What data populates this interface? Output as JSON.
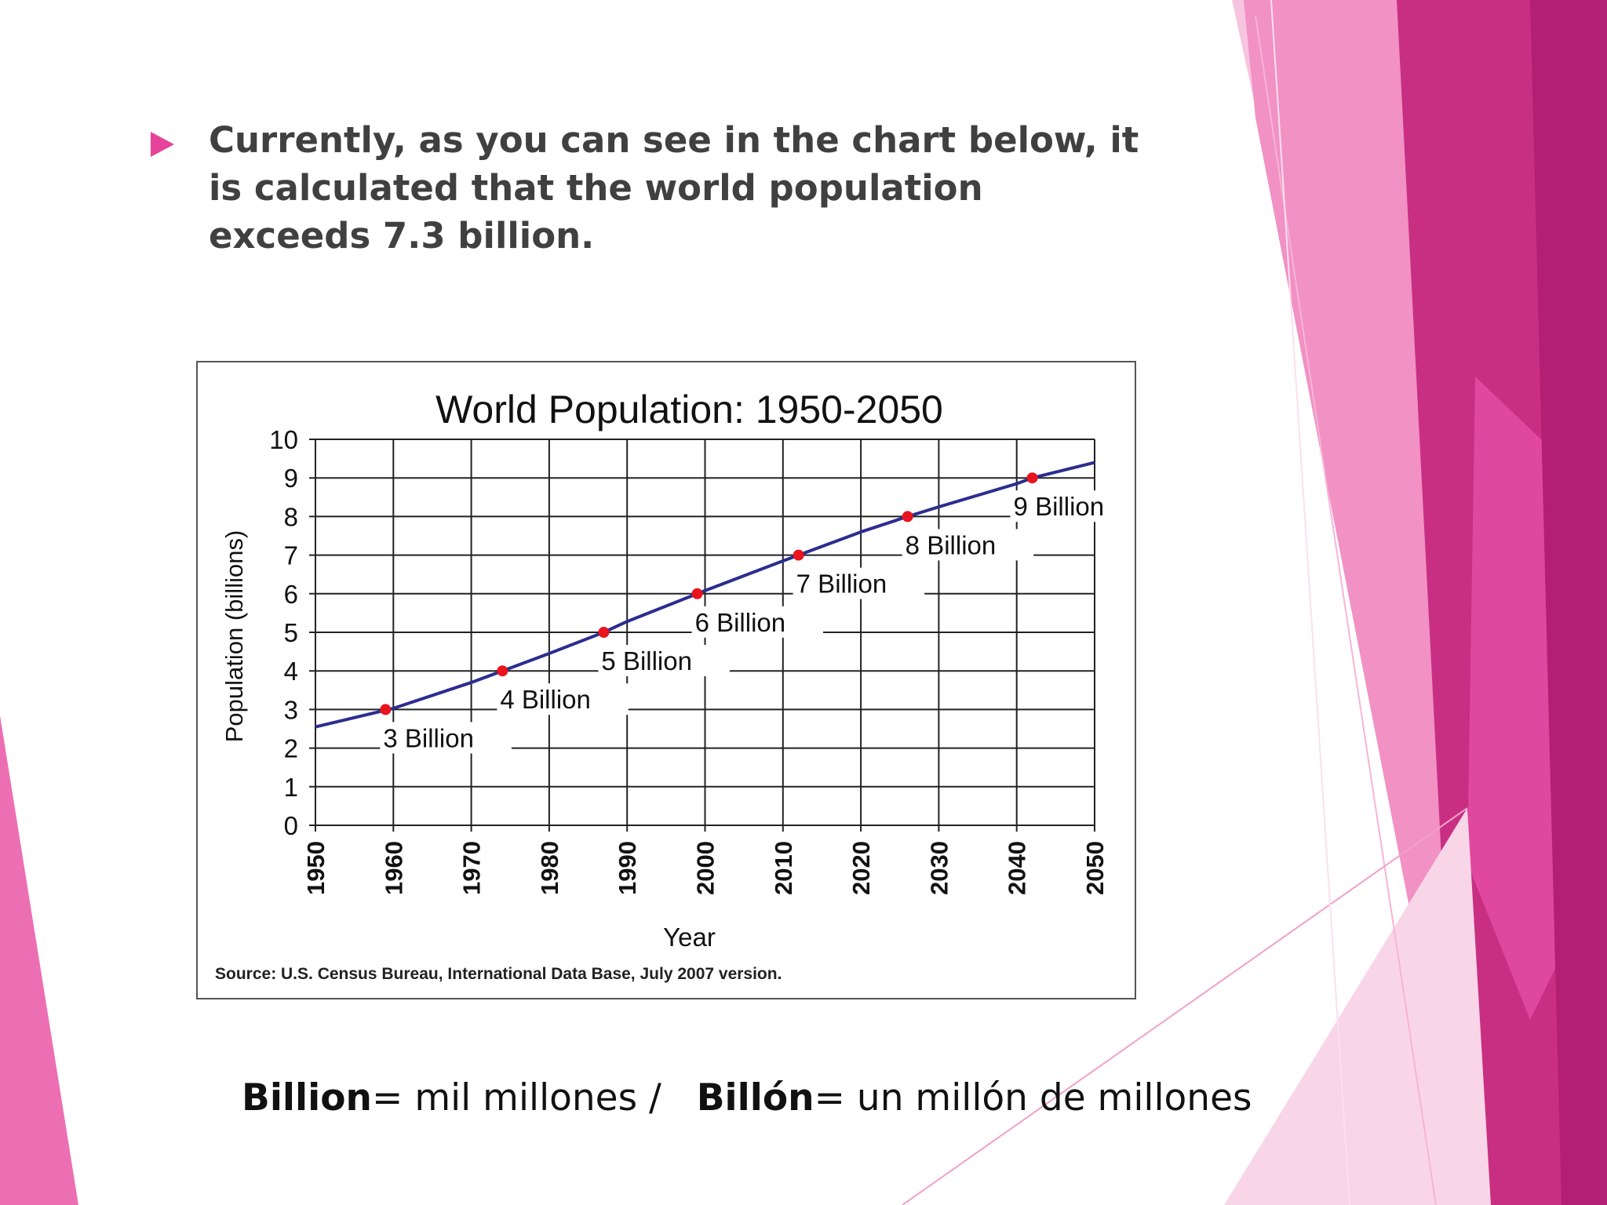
{
  "slide": {
    "intro_text": "Currently, as you can see in the chart below, it is calculated that the world population exceeds 7.3 billion.",
    "footnote": {
      "term1": "Billion",
      "def1": "= mil millones /",
      "term2": "Billón",
      "def2": "= un millón de millones"
    },
    "colors": {
      "accent": "#e6449b",
      "magenta_dark": "#c0257a",
      "pink_light": "#f4a9cf"
    }
  },
  "chart_data": {
    "type": "line",
    "title": "World Population: 1950-2050",
    "xlabel": "Year",
    "ylabel": "Population (billions)",
    "source": "Source: U.S. Census Bureau, International Data Base, July 2007 version.",
    "xlim": [
      1950,
      2050
    ],
    "ylim": [
      0,
      10
    ],
    "x_ticks": [
      "1950",
      "1960",
      "1970",
      "1980",
      "1990",
      "2000",
      "2010",
      "2020",
      "2030",
      "2040",
      "2050"
    ],
    "y_ticks": [
      "0",
      "1",
      "2",
      "3",
      "4",
      "5",
      "6",
      "7",
      "8",
      "9",
      "10"
    ],
    "grid": true,
    "series": [
      {
        "x": [
          1950,
          1960,
          1970,
          1974,
          1980,
          1987,
          1990,
          1999,
          2000,
          2010,
          2012,
          2020,
          2026,
          2030,
          2040,
          2042,
          2050
        ],
        "y": [
          2.55,
          3.03,
          3.7,
          4.0,
          4.45,
          5.0,
          5.28,
          6.0,
          6.08,
          6.85,
          7.0,
          7.6,
          8.0,
          8.25,
          8.85,
          9.0,
          9.4
        ],
        "color": "#2b2d8f"
      }
    ],
    "milestones": [
      {
        "x": 1959,
        "y": 3,
        "label": "3 Billion"
      },
      {
        "x": 1974,
        "y": 4,
        "label": "4 Billion"
      },
      {
        "x": 1987,
        "y": 5,
        "label": "5 Billion"
      },
      {
        "x": 1999,
        "y": 6,
        "label": "6 Billion"
      },
      {
        "x": 2012,
        "y": 7,
        "label": "7 Billion"
      },
      {
        "x": 2026,
        "y": 8,
        "label": "8 Billion"
      },
      {
        "x": 2042,
        "y": 9,
        "label": "9 Billion"
      }
    ],
    "marker_color": "#e8141e"
  }
}
